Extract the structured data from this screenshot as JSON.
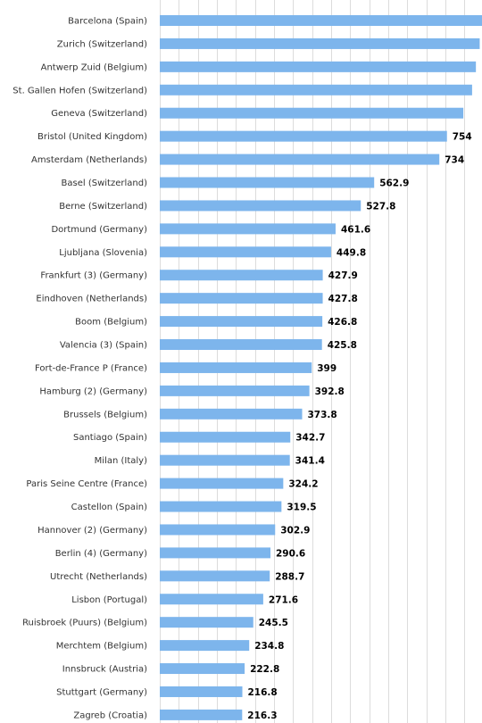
{
  "chart_data": {
    "type": "bar",
    "orientation": "horizontal",
    "bar_color": "#7db5ec",
    "grid": true,
    "xlim": [
      0,
      900
    ],
    "categories": [
      "Barcelona (Spain)",
      "Zurich (Switzerland)",
      "Antwerp Zuid (Belgium)",
      "St. Gallen Hofen (Switzerland)",
      "Geneva (Switzerland)",
      "Bristol (United Kingdom)",
      "Amsterdam (Netherlands)",
      "Basel (Switzerland)",
      "Berne (Switzerland)",
      "Dortmund (Germany)",
      "Ljubljana (Slovenia)",
      "Frankfurt (3) (Germany)",
      "Eindhoven (Netherlands)",
      "Boom (Belgium)",
      "Valencia (3) (Spain)",
      "Fort-de-France P (France)",
      "Hamburg (2) (Germany)",
      "Brussels (Belgium)",
      "Santiago (Spain)",
      "Milan (Italy)",
      "Paris Seine Centre (France)",
      "Castellon (Spain)",
      "Hannover (2) (Germany)",
      "Berlin (4) (Germany)",
      "Utrecht (Netherlands)",
      "Lisbon (Portugal)",
      "Ruisbroek (Puurs) (Belgium)",
      "Merchtem (Belgium)",
      "Innsbruck (Austria)",
      "Stuttgart (Germany)",
      "Zagreb (Croatia)"
    ],
    "values": [
      850,
      840,
      830,
      820,
      797,
      754,
      734,
      562.9,
      527.8,
      461.6,
      449.8,
      427.9,
      427.8,
      426.8,
      425.8,
      399,
      392.8,
      373.8,
      342.7,
      341.4,
      324.2,
      319.5,
      302.9,
      290.6,
      288.7,
      271.6,
      245.5,
      234.8,
      222.8,
      216.8,
      216.3
    ],
    "value_labels": [
      "",
      "",
      "",
      "",
      "",
      "754",
      "734",
      "562.9",
      "527.8",
      "461.6",
      "449.8",
      "427.9",
      "427.8",
      "426.8",
      "425.8",
      "399",
      "392.8",
      "373.8",
      "342.7",
      "341.4",
      "324.2",
      "319.5",
      "302.9",
      "290.6",
      "288.7",
      "271.6",
      "245.5",
      "234.8",
      "222.8",
      "216.8",
      "216.3"
    ]
  }
}
